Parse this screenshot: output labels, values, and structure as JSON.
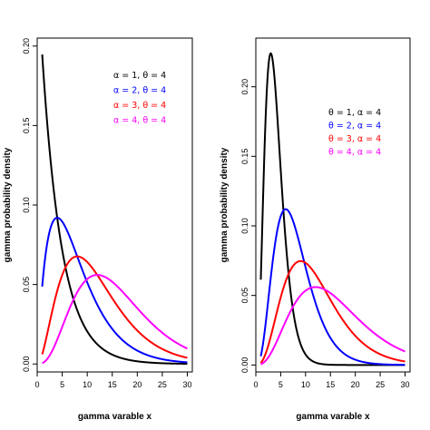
{
  "chart_data": [
    {
      "type": "line",
      "xlabel": "gamma varable x",
      "ylabel": "gamma probability density",
      "xlim": [
        0,
        31
      ],
      "ylim": [
        -0.005,
        0.205
      ],
      "x_ticks": [
        "0",
        "5",
        "10",
        "15",
        "20",
        "25",
        "30"
      ],
      "y_ticks": [
        "0.00",
        "0.05",
        "0.10",
        "0.15",
        "0.20"
      ],
      "legend": [
        "α = 1,   θ = 4",
        "α = 2,   θ = 4",
        "α = 3,   θ = 4",
        "α = 4,   θ = 4"
      ],
      "legend_position": "top-right",
      "series": [
        {
          "name": "α = 1,   θ = 4",
          "color": "#000000",
          "shape": 1,
          "scale": 4
        },
        {
          "name": "α = 2,   θ = 4",
          "color": "#0000ff",
          "shape": 2,
          "scale": 4
        },
        {
          "name": "α = 3,   θ = 4",
          "color": "#ff0000",
          "shape": 3,
          "scale": 4
        },
        {
          "name": "α = 4,   θ = 4",
          "color": "#ff00ff",
          "shape": 4,
          "scale": 4
        }
      ],
      "x_range": [
        1,
        30
      ]
    },
    {
      "type": "line",
      "xlabel": "gamma varable x",
      "ylabel": "gamma probability density",
      "xlim": [
        0,
        31
      ],
      "ylim": [
        -0.005,
        0.235
      ],
      "x_ticks": [
        "0",
        "5",
        "10",
        "15",
        "20",
        "25",
        "30"
      ],
      "y_ticks": [
        "0.00",
        "0.05",
        "0.10",
        "0.15",
        "0.20"
      ],
      "legend": [
        "θ = 1,   α = 4",
        "θ = 2,   α = 4",
        "θ = 3,   α = 4",
        "θ = 4,   α = 4"
      ],
      "legend_position": "top-right",
      "series": [
        {
          "name": "θ = 1,   α = 4",
          "color": "#000000",
          "shape": 4,
          "scale": 1
        },
        {
          "name": "θ = 2,   α = 4",
          "color": "#0000ff",
          "shape": 4,
          "scale": 2
        },
        {
          "name": "θ = 3,   α = 4",
          "color": "#ff0000",
          "shape": 4,
          "scale": 3
        },
        {
          "name": "θ = 4,   α = 4",
          "color": "#ff00ff",
          "shape": 4,
          "scale": 4
        }
      ],
      "x_range": [
        1,
        30
      ]
    }
  ]
}
